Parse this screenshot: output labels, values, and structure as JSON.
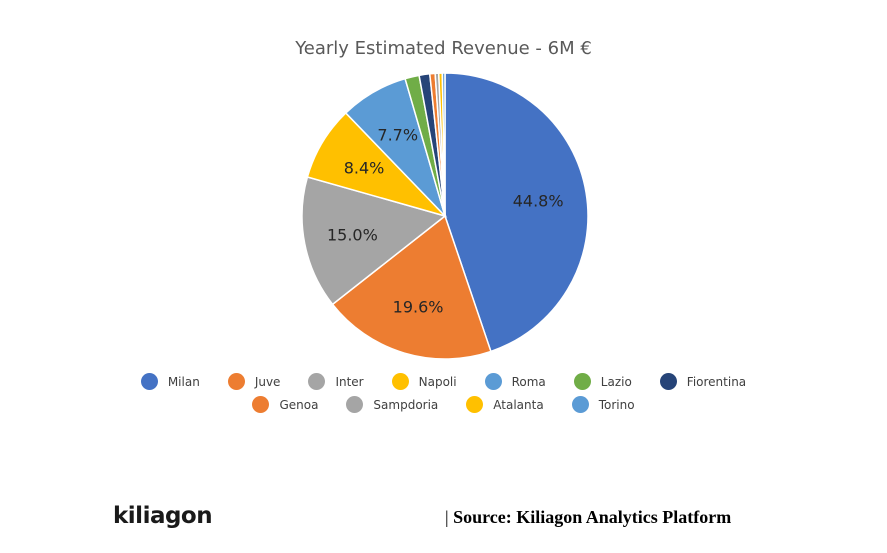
{
  "chart_data": {
    "type": "pie",
    "title": "Yearly Estimated Revenue - 6M €",
    "slices": [
      {
        "label": "Milan",
        "value": 44.8,
        "display": "44.8%",
        "color": "#4472C4"
      },
      {
        "label": "Juve",
        "value": 19.6,
        "display": "19.6%",
        "color": "#ED7D31"
      },
      {
        "label": "Inter",
        "value": 15.0,
        "display": "15.0%",
        "color": "#A5A5A5"
      },
      {
        "label": "Napoli",
        "value": 8.4,
        "display": "8.4%",
        "color": "#FFC000"
      },
      {
        "label": "Roma",
        "value": 7.7,
        "display": "7.7%",
        "color": "#5B9BD5"
      },
      {
        "label": "Lazio",
        "value": 1.6,
        "display": "",
        "color": "#70AD47"
      },
      {
        "label": "Fiorentina",
        "value": 1.2,
        "display": "",
        "color": "#264478"
      },
      {
        "label": "Genoa",
        "value": 0.6,
        "display": "",
        "color": "#ED7D31"
      },
      {
        "label": "Sampdoria",
        "value": 0.4,
        "display": "",
        "color": "#A5A5A5"
      },
      {
        "label": "Atalanta",
        "value": 0.4,
        "display": "",
        "color": "#FFC000"
      },
      {
        "label": "Torino",
        "value": 0.3,
        "display": "",
        "color": "#5B9BD5"
      }
    ],
    "legend_position": "bottom"
  },
  "legend": {
    "row1": [
      "Milan",
      "Juve",
      "Inter",
      "Napoli",
      "Roma",
      "Lazio",
      "Fiorentina"
    ],
    "row2": [
      "Genoa",
      "Sampdoria",
      "Atalanta",
      "Torino"
    ]
  },
  "footer": {
    "brand": "kiliagon",
    "source_bar": "|",
    "source": "Source: Kiliagon Analytics Platform"
  }
}
